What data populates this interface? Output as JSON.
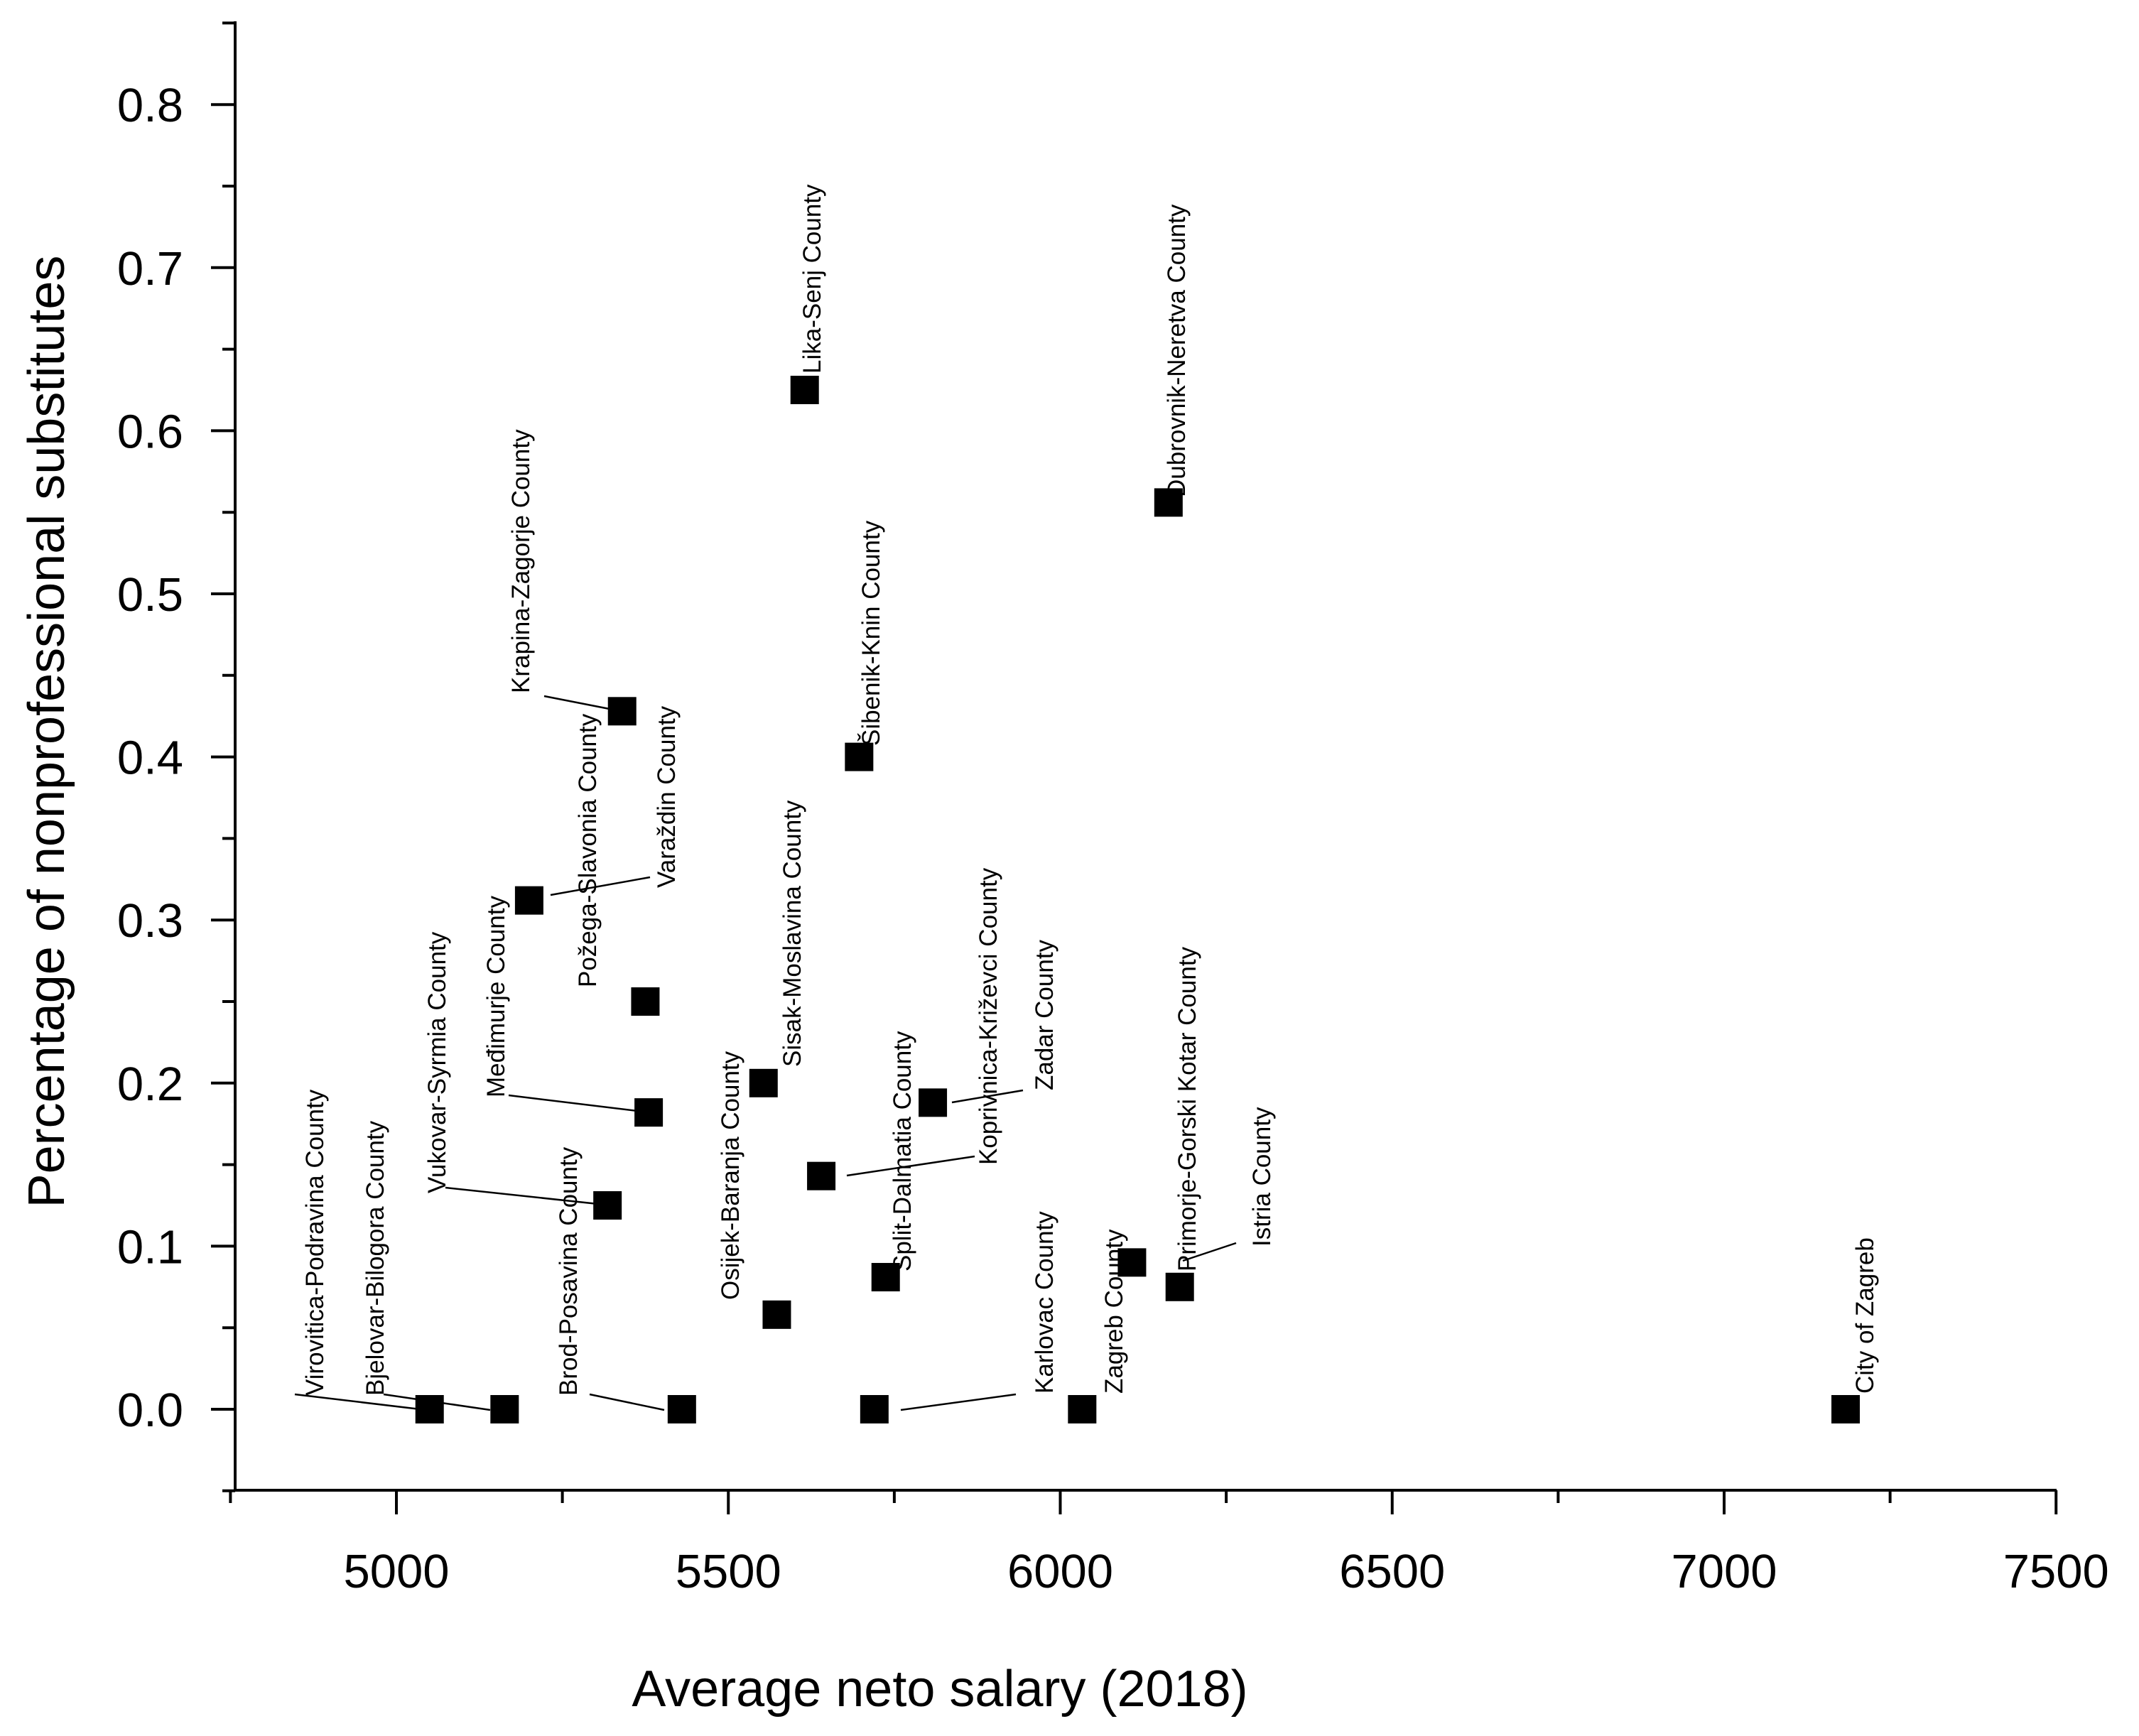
{
  "chart_data": {
    "type": "scatter",
    "title": "",
    "xlabel": "Average neto salary (2018)",
    "ylabel": "Percentage of nonprofessional substitutes",
    "xlim": [
      4750,
      7500
    ],
    "ylim": [
      -0.05,
      0.85
    ],
    "x_ticks": [
      5000,
      5500,
      6000,
      6500,
      7000,
      7500
    ],
    "x_tick_labels": [
      "5000",
      "5500",
      "6000",
      "6500",
      "7000",
      "7500"
    ],
    "y_ticks": [
      0.0,
      0.1,
      0.2,
      0.3,
      0.4,
      0.5,
      0.6,
      0.7,
      0.8
    ],
    "y_tick_labels": [
      "0.0",
      "0.1",
      "0.2",
      "0.3",
      "0.4",
      "0.5",
      "0.6",
      "0.7",
      "0.8"
    ],
    "grid": false,
    "marker": "square",
    "points": [
      {
        "label": "Virovitica-Podravina County",
        "x": 5050,
        "y": 0.0
      },
      {
        "label": "Bjelovar-Bilogora County",
        "x": 5163,
        "y": 0.0
      },
      {
        "label": "Brod-Posavina County",
        "x": 5430,
        "y": 0.0
      },
      {
        "label": "Karlovac County",
        "x": 5720,
        "y": 0.0
      },
      {
        "label": "Zagreb County",
        "x": 6033,
        "y": 0.0
      },
      {
        "label": "City of Zagreb",
        "x": 7183,
        "y": 0.0
      },
      {
        "label": "Osijek-Baranja County",
        "x": 5573,
        "y": 0.058
      },
      {
        "label": "Split-Dalmatia County",
        "x": 5737,
        "y": 0.081
      },
      {
        "label": "Primorje-Gorski Kotar County",
        "x": 6108,
        "y": 0.09
      },
      {
        "label": "Istria County",
        "x": 6180,
        "y": 0.075
      },
      {
        "label": "Vukovar-Syrmia County",
        "x": 5318,
        "y": 0.125
      },
      {
        "label": "Koprivnica-Križevci County",
        "x": 5640,
        "y": 0.143
      },
      {
        "label": "Međimurje County",
        "x": 5380,
        "y": 0.182
      },
      {
        "label": "Zadar County",
        "x": 5808,
        "y": 0.188
      },
      {
        "label": "Sisak-Moslavina County",
        "x": 5553,
        "y": 0.2
      },
      {
        "label": "Požega-Slavonia County",
        "x": 5375,
        "y": 0.25
      },
      {
        "label": "Varaždin County",
        "x": 5200,
        "y": 0.312
      },
      {
        "label": "Krapina-Zagorje County",
        "x": 5340,
        "y": 0.428
      },
      {
        "label": "Šibenik-Knin County",
        "x": 5697,
        "y": 0.4
      },
      {
        "label": "Dubrovnik-Neretva County",
        "x": 6163,
        "y": 0.556
      },
      {
        "label": "Lika-Senj County",
        "x": 5615,
        "y": 0.625
      }
    ]
  }
}
